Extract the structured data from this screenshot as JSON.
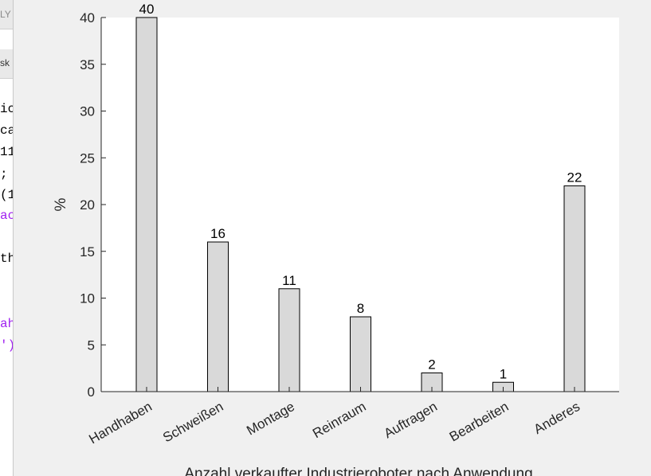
{
  "editor_fragments": {
    "tab_text": "LY",
    "toolbar_text": "sk",
    "code_lines": [
      {
        "text": "ic",
        "color": "#000000"
      },
      {
        "text": "ca",
        "color": "#000000"
      },
      {
        "text": "11",
        "color": "#000000"
      },
      {
        "text": ";",
        "color": "#000000"
      },
      {
        "text": "(1",
        "color": "#000000"
      },
      {
        "text": "ac",
        "color": "#a020f0"
      },
      {
        "text": "th",
        "color": "#000000"
      },
      {
        "text": "ah",
        "color": "#a020f0"
      },
      {
        "text": "')",
        "color": "#a020f0"
      }
    ]
  },
  "chart_data": {
    "type": "bar",
    "categories": [
      "Handhaben",
      "Schweißen",
      "Montage",
      "Reinraum",
      "Auftragen",
      "Bearbeiten",
      "Anderes"
    ],
    "values": [
      40,
      16,
      11,
      8,
      2,
      1,
      22
    ],
    "data_labels": [
      "40",
      "16",
      "11",
      "8",
      "2",
      "1",
      "22"
    ],
    "xlabel": "Anzahl verkaufter Industrieroboter nach Anwendung",
    "ylabel": "%",
    "ylim": [
      0,
      40
    ],
    "yticks": [
      0,
      5,
      10,
      15,
      20,
      25,
      30,
      35,
      40
    ],
    "bar_color": "#d9d9d9",
    "bar_edge_color": "#000000",
    "plot_background": "#ffffff",
    "figure_background": "#f0f0f0",
    "grid": false,
    "box": "off"
  }
}
